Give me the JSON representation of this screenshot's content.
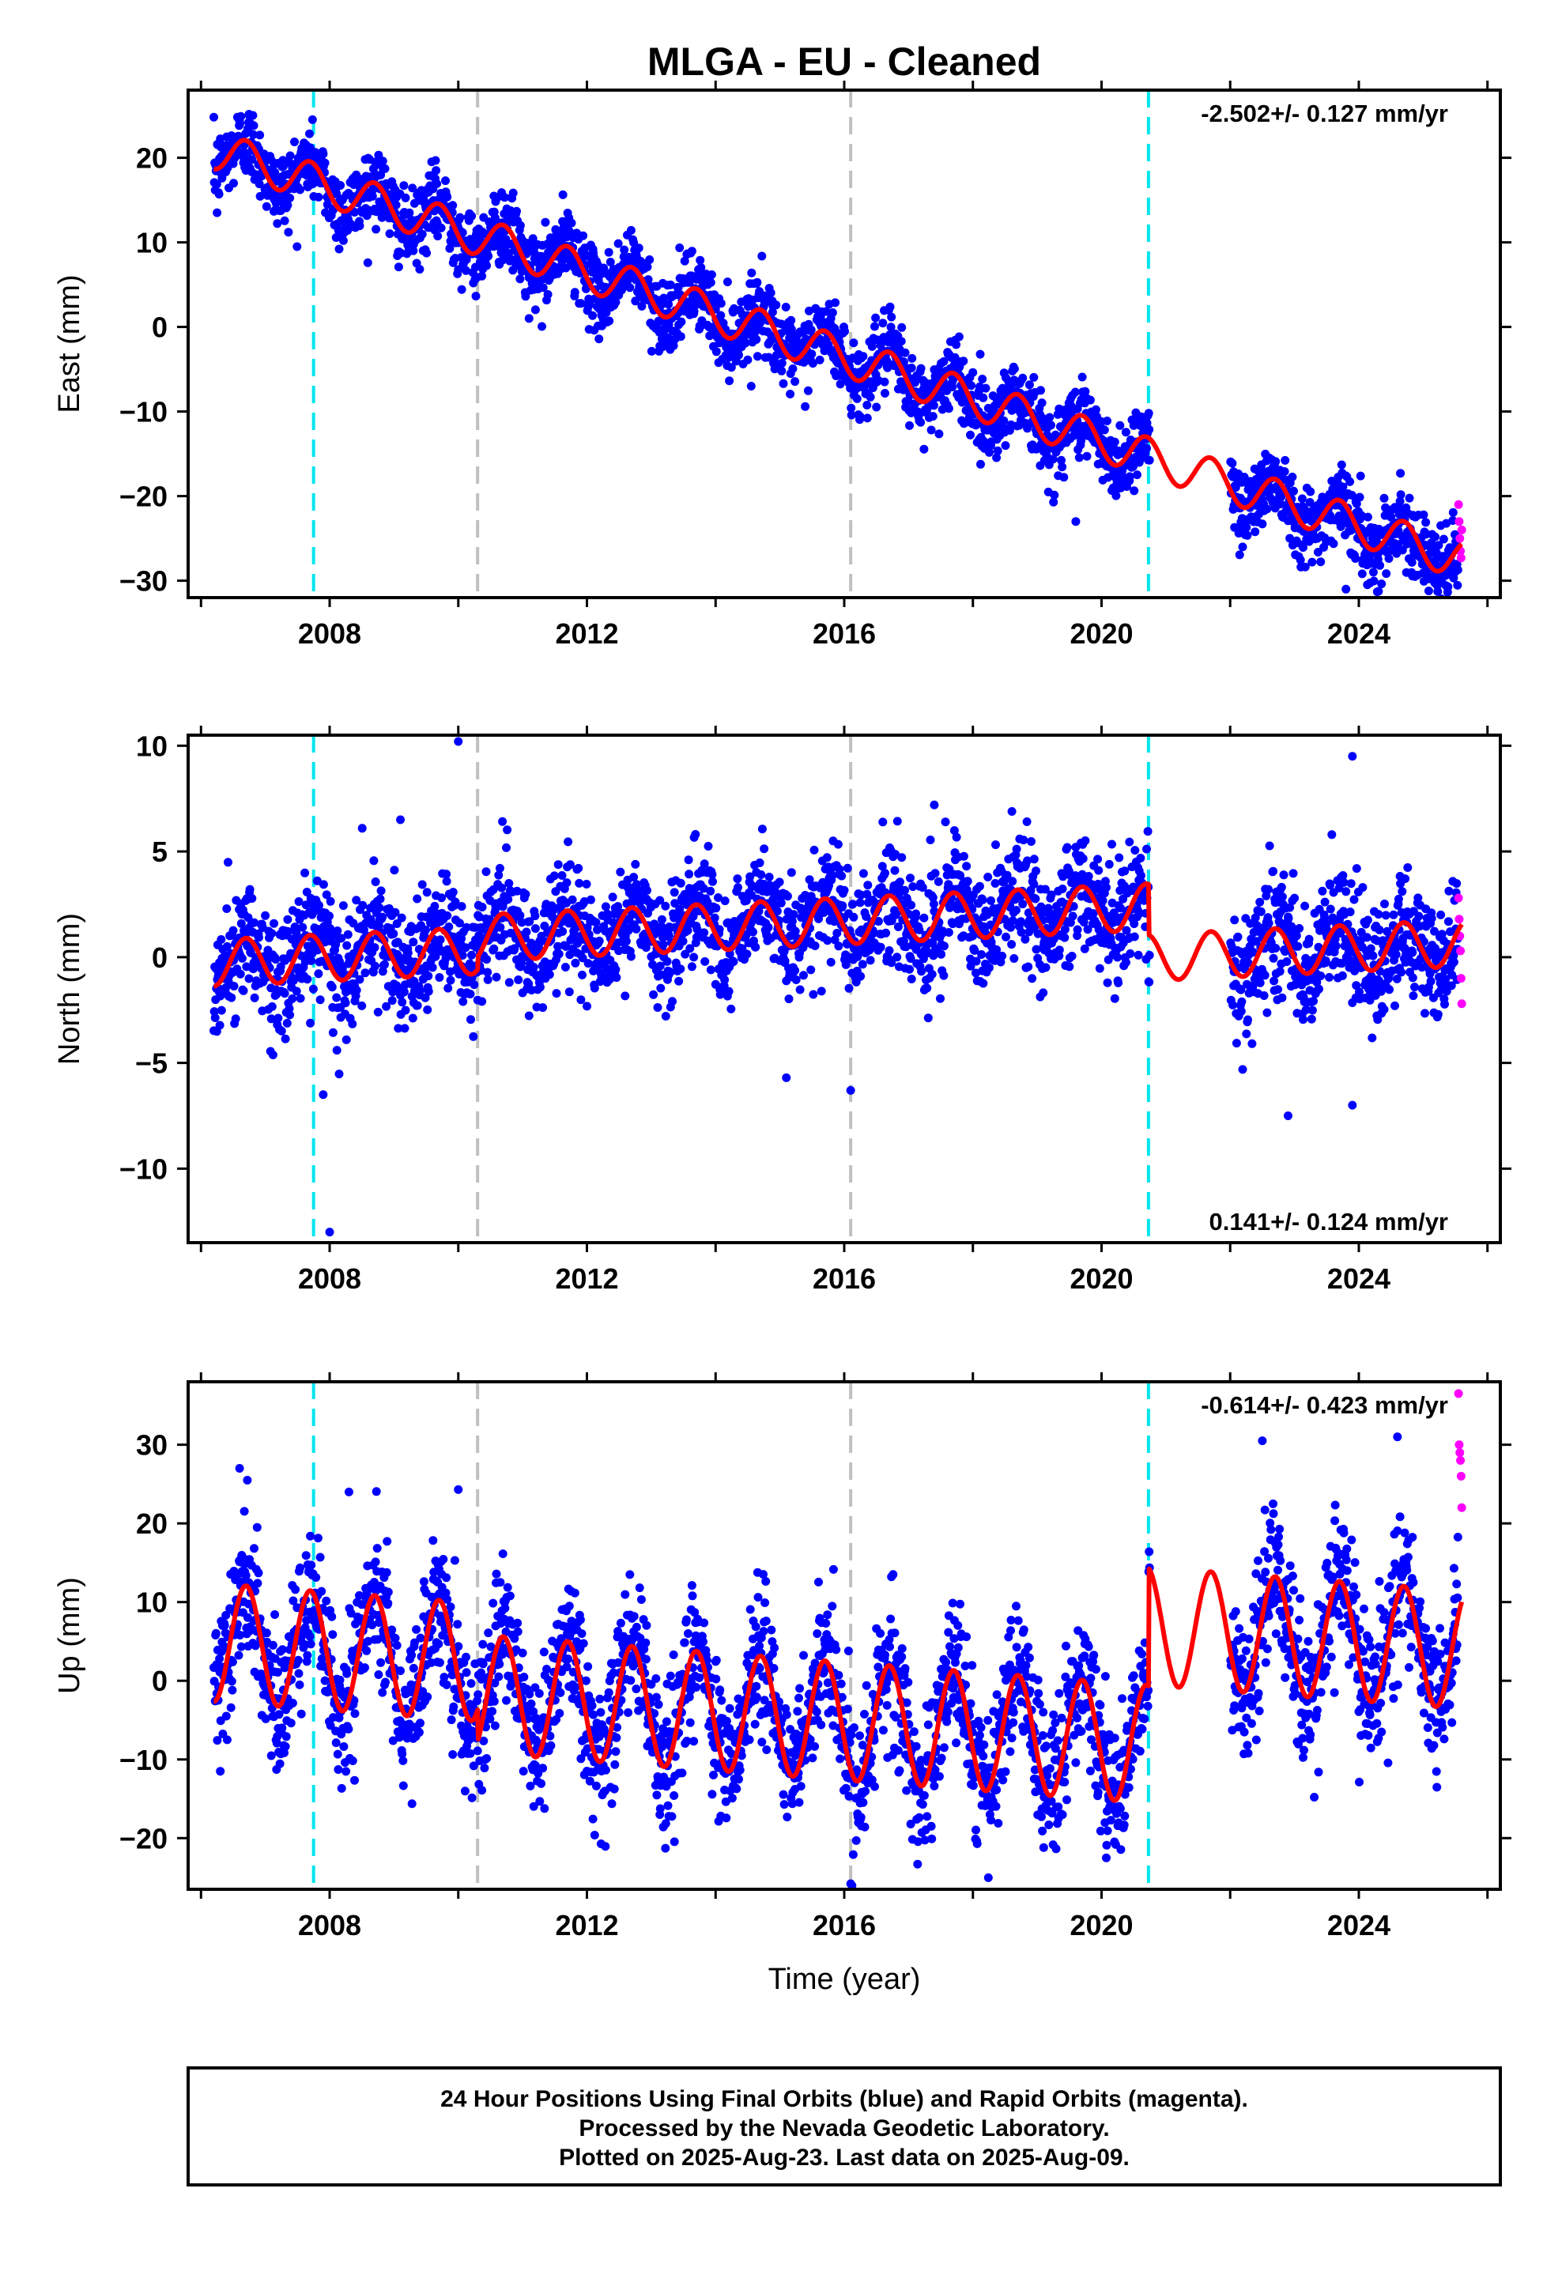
{
  "title": "MLGA  - EU - Cleaned",
  "xlabel": "Time (year)",
  "footer": [
    "24 Hour Positions Using Final Orbits (blue) and Rapid Orbits (magenta).",
    "Processed by the Nevada Geodetic Laboratory.",
    "Plotted on 2025-Aug-23. Last data on 2025-Aug-09."
  ],
  "colors": {
    "final_orbits": "#0000ff",
    "rapid_orbits": "#ff00ff",
    "model": "#ff0000",
    "equipment_change_line": "#00e5ee",
    "other_event_line": "#c0c0c0"
  },
  "chart_data": [
    {
      "type": "scatter",
      "component": "East",
      "ylabel": "East (mm)",
      "xlim": [
        2005.8,
        2026.2
      ],
      "ylim": [
        -32,
        28
      ],
      "yticks": [
        -30,
        -20,
        -10,
        0,
        10,
        20
      ],
      "xticks": [
        2008,
        2012,
        2016,
        2020,
        2024
      ],
      "data_span": [
        2006.2,
        2025.6
      ],
      "gap": [
        2020.75,
        2022.0
      ],
      "rate_label": "-2.502+/- 0.127 mm/yr",
      "rate_position": "top-right",
      "model": {
        "intercept_2006": 21.5,
        "rate_mm_per_yr": -2.502,
        "annual_amplitude": 2.3,
        "offsets": []
      },
      "scatter_noise": 2.2,
      "outliers": [
        [
          2006.25,
          13.5
        ],
        [
          2011.1,
          1.0
        ],
        [
          2019.6,
          -23.0
        ],
        [
          2023.8,
          -31.0
        ]
      ],
      "rapid_points": [
        [
          2025.55,
          -21.0
        ],
        [
          2025.56,
          -23.0
        ],
        [
          2025.57,
          -25.0
        ],
        [
          2025.58,
          -26.5
        ],
        [
          2025.59,
          -27.3
        ],
        [
          2025.6,
          -24.0
        ]
      ],
      "vlines_cyan": [
        2007.75,
        2020.73
      ],
      "vlines_gray": [
        2010.3,
        2016.1
      ]
    },
    {
      "type": "scatter",
      "component": "North",
      "ylabel": "North (mm)",
      "xlim": [
        2005.8,
        2026.2
      ],
      "ylim": [
        -13.5,
        10.5
      ],
      "yticks": [
        -10,
        -5,
        0,
        5,
        10
      ],
      "xticks": [
        2008,
        2012,
        2016,
        2020,
        2024
      ],
      "data_span": [
        2006.2,
        2025.6
      ],
      "gap": [
        2020.75,
        2022.0
      ],
      "rate_label": "0.141+/- 0.124 mm/yr",
      "rate_position": "bottom-right",
      "model": {
        "intercept_2006": -0.3,
        "rate_mm_per_yr": 0.141,
        "annual_amplitude": 1.1,
        "offsets": [
          [
            2010.3,
            0.6
          ],
          [
            2020.73,
            -2.4
          ]
        ]
      },
      "scatter_noise": 1.4,
      "outliers": [
        [
          2008.0,
          -13.0
        ],
        [
          2010.0,
          10.2
        ],
        [
          2007.9,
          -6.5
        ],
        [
          2009.1,
          6.5
        ],
        [
          2015.1,
          -5.7
        ],
        [
          2016.1,
          -6.3
        ],
        [
          2017.4,
          7.2
        ],
        [
          2022.9,
          -7.5
        ],
        [
          2023.9,
          -7.0
        ],
        [
          2023.9,
          9.5
        ]
      ],
      "rapid_points": [
        [
          2025.55,
          2.8
        ],
        [
          2025.56,
          1.8
        ],
        [
          2025.57,
          1.0
        ],
        [
          2025.58,
          0.3
        ],
        [
          2025.59,
          -1.0
        ],
        [
          2025.6,
          -2.2
        ]
      ],
      "vlines_cyan": [
        2007.75,
        2020.73
      ],
      "vlines_gray": [
        2010.3,
        2016.1
      ]
    },
    {
      "type": "scatter",
      "component": "Up",
      "ylabel": "Up (mm)",
      "xlim": [
        2005.8,
        2026.2
      ],
      "ylim": [
        -26.5,
        38
      ],
      "yticks": [
        -20,
        -10,
        0,
        10,
        20,
        30
      ],
      "xticks": [
        2008,
        2012,
        2016,
        2020,
        2024
      ],
      "data_span": [
        2006.2,
        2025.6
      ],
      "gap": [
        2020.75,
        2022.0
      ],
      "rate_label": "-0.614+/- 0.423 mm/yr",
      "rate_position": "top-right",
      "model": {
        "intercept_2006": 5.0,
        "rate_mm_per_yr": -0.614,
        "annual_amplitude": 7.5,
        "offsets": [
          [
            2010.3,
            -4.0
          ],
          [
            2020.73,
            15.0
          ]
        ]
      },
      "scatter_noise": 4.5,
      "outliers": [
        [
          2006.6,
          27.0
        ],
        [
          2008.3,
          24.0
        ],
        [
          2010.0,
          24.3
        ],
        [
          2016.1,
          -25.8
        ],
        [
          2022.5,
          30.5
        ],
        [
          2024.6,
          31.0
        ],
        [
          2006.3,
          -11.5
        ]
      ],
      "rapid_points": [
        [
          2025.55,
          36.5
        ],
        [
          2025.56,
          30.0
        ],
        [
          2025.57,
          29.0
        ],
        [
          2025.58,
          28.0
        ],
        [
          2025.59,
          26.0
        ],
        [
          2025.6,
          22.0
        ]
      ],
      "vlines_cyan": [
        2007.75,
        2020.73
      ],
      "vlines_gray": [
        2010.3,
        2016.1
      ]
    }
  ]
}
